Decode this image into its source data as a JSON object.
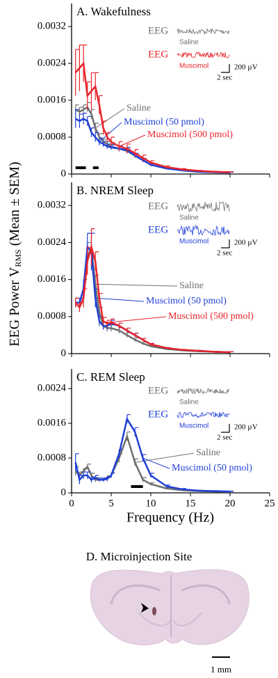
{
  "figure_y_label": {
    "main": "EEG Power V",
    "sub": "RMS",
    "tail": " (Mean ± SEM)"
  },
  "chart_data": [
    {
      "type": "line",
      "title": "A. Wakefulness",
      "x": [
        0.5,
        1,
        1.5,
        2,
        2.5,
        3,
        3.5,
        4,
        4.5,
        5,
        6,
        7,
        8,
        9,
        10,
        12,
        14,
        16,
        18,
        20
      ],
      "xlim": [
        0,
        25
      ],
      "ylim": [
        0,
        0.0037
      ],
      "yticks": [
        0,
        0.0008,
        0.0016,
        0.0024,
        0.0032
      ],
      "series": [
        {
          "name": "Saline",
          "color": "#6e6e6e",
          "values": [
            0.0014,
            0.00135,
            0.0014,
            0.00145,
            0.0013,
            0.001,
            0.0008,
            0.0007,
            0.00065,
            0.0006,
            0.00055,
            0.0005,
            0.0004,
            0.0003,
            0.0002,
            0.00012,
            8e-05,
            5e-05,
            4e-05,
            3e-05
          ],
          "errors": [
            0.0001,
            0.0001,
            0.0001,
            0.0001,
            0.0001,
            0.0001,
            8e-05,
            6e-05,
            5e-05,
            5e-05,
            5e-05,
            5e-05,
            4e-05,
            3e-05,
            2e-05,
            1e-05,
            1e-05,
            1e-05,
            1e-05,
            1e-05
          ]
        },
        {
          "name": "Muscimol (50 pmol)",
          "color": "#1f3fd6",
          "values": [
            0.0012,
            0.00115,
            0.0012,
            0.00115,
            0.0009,
            0.0008,
            0.0007,
            0.00065,
            0.0006,
            0.00058,
            0.00055,
            0.00052,
            0.0004,
            0.0003,
            0.0002,
            0.00012,
            8e-05,
            5e-05,
            4e-05,
            3e-05
          ],
          "errors": [
            0.0002,
            0.00015,
            0.00012,
            0.0001,
            0.0001,
            0.0001,
            8e-05,
            6e-05,
            5e-05,
            5e-05,
            6e-05,
            6e-05,
            5e-05,
            4e-05,
            3e-05,
            2e-05,
            1e-05,
            1e-05,
            1e-05,
            1e-05
          ]
        },
        {
          "name": "Muscimol (500 pmol)",
          "color": "#e8232a",
          "values": [
            0.0022,
            0.0023,
            0.0024,
            0.0017,
            0.0018,
            0.0019,
            0.0015,
            0.001,
            0.0008,
            0.0007,
            0.0006,
            0.00055,
            0.00045,
            0.00035,
            0.00025,
            0.00015,
            0.0001,
            7e-05,
            5e-05,
            4e-05
          ],
          "errors": [
            0.0005,
            0.0005,
            0.0004,
            0.0003,
            0.0004,
            0.0003,
            0.0002,
            0.00015,
            0.0001,
            0.0001,
            0.0001,
            0.0001,
            8e-05,
            6e-05,
            4e-05,
            3e-05,
            2e-05,
            1e-05,
            1e-05,
            1e-05
          ]
        }
      ],
      "sig_bars": [
        [
          0.5,
          1.8
        ],
        [
          2.7,
          3.4
        ]
      ],
      "inset": {
        "traces": [
          {
            "label": "EEG",
            "name": "Saline",
            "color": "#6e6e6e"
          },
          {
            "label": "EEG",
            "name": "Muscimol",
            "color": "#e8232a"
          }
        ],
        "scale_v": "200 µV",
        "scale_t": "2 sec"
      }
    },
    {
      "type": "line",
      "title": "B. NREM Sleep",
      "x": [
        0.5,
        1,
        1.5,
        2,
        2.5,
        3,
        3.5,
        4,
        4.5,
        5,
        6,
        7,
        8,
        9,
        10,
        12,
        14,
        16,
        18,
        20
      ],
      "xlim": [
        0,
        25
      ],
      "ylim": [
        0,
        0.0037
      ],
      "yticks": [
        0,
        0.0008,
        0.0016,
        0.0024,
        0.0032
      ],
      "series": [
        {
          "name": "Saline",
          "color": "#6e6e6e",
          "values": [
            0.0011,
            0.001,
            0.0012,
            0.0021,
            0.0023,
            0.0015,
            0.0009,
            0.0006,
            0.00055,
            0.00055,
            0.0005,
            0.0004,
            0.0003,
            0.00022,
            0.00016,
            0.0001,
            7e-05,
            5e-05,
            4e-05,
            3e-05
          ],
          "errors": [
            0.0001,
            0.0001,
            0.0002,
            0.0003,
            0.0004,
            0.0002,
            0.0001,
            8e-05,
            7e-05,
            7e-05,
            6e-05,
            5e-05,
            4e-05,
            3e-05,
            2e-05,
            1e-05,
            1e-05,
            1e-05,
            1e-05,
            1e-05
          ]
        },
        {
          "name": "Muscimol (50 pmol)",
          "color": "#1f3fd6",
          "values": [
            0.0011,
            0.0011,
            0.0014,
            0.0023,
            0.0022,
            0.0012,
            0.0007,
            0.0006,
            0.0006,
            0.00065,
            0.0006,
            0.0005,
            0.0004,
            0.0003,
            0.0002,
            0.00012,
            8e-05,
            6e-05,
            4e-05,
            3e-05
          ],
          "errors": [
            0.0001,
            0.0001,
            0.0002,
            0.0003,
            0.0004,
            0.0002,
            0.0001,
            8e-05,
            7e-05,
            7e-05,
            6e-05,
            5e-05,
            4e-05,
            3e-05,
            2e-05,
            1e-05,
            1e-05,
            1e-05,
            1e-05,
            1e-05
          ]
        },
        {
          "name": "Muscimol (500 pmol)",
          "color": "#e8232a",
          "values": [
            0.0011,
            0.001,
            0.0012,
            0.002,
            0.0023,
            0.002,
            0.0012,
            0.0007,
            0.00065,
            0.00068,
            0.0006,
            0.0005,
            0.0004,
            0.0003,
            0.0002,
            0.00012,
            8e-05,
            6e-05,
            4e-05,
            3e-05
          ],
          "errors": [
            0.0001,
            0.0001,
            0.0002,
            0.0003,
            0.0004,
            0.0002,
            0.0001,
            8e-05,
            7e-05,
            7e-05,
            6e-05,
            5e-05,
            4e-05,
            3e-05,
            2e-05,
            1e-05,
            1e-05,
            1e-05,
            1e-05,
            1e-05
          ]
        }
      ],
      "inset": {
        "traces": [
          {
            "label": "EEG",
            "name": "Saline",
            "color": "#6e6e6e"
          },
          {
            "label": "EEG",
            "name": "Muscimol",
            "color": "#1f3fd6"
          }
        ],
        "scale_v": "200 µV",
        "scale_t": "2 sec"
      }
    },
    {
      "type": "line",
      "title": "C. REM Sleep",
      "xlabel": "Frequency (Hz)",
      "x": [
        0.5,
        1,
        1.5,
        2,
        2.5,
        3,
        3.5,
        4,
        4.5,
        5,
        6,
        7,
        8,
        9,
        10,
        12,
        14,
        16,
        18,
        20
      ],
      "xlim": [
        0,
        25
      ],
      "xticks": [
        0,
        5,
        10,
        15,
        20,
        25
      ],
      "ylim": [
        0,
        0.00285
      ],
      "yticks": [
        0,
        0.0008,
        0.0016,
        0.0024
      ],
      "series": [
        {
          "name": "Saline",
          "color": "#6e6e6e",
          "values": [
            0.0005,
            0.0004,
            0.0005,
            0.0006,
            0.0004,
            0.0003,
            0.0003,
            0.0003,
            0.00035,
            0.0004,
            0.0008,
            0.0013,
            0.0007,
            0.0003,
            0.0002,
            0.0001,
            6e-05,
            4e-05,
            3e-05,
            2e-05
          ],
          "errors": [
            0.0001,
            8e-05,
            6e-05,
            6e-05,
            5e-05,
            5e-05,
            4e-05,
            4e-05,
            4e-05,
            5e-05,
            0.0001,
            0.0001,
            8e-05,
            5e-05,
            3e-05,
            2e-05,
            1e-05,
            1e-05,
            1e-05,
            1e-05
          ]
        },
        {
          "name": "Muscimol (50 pmol)",
          "color": "#1f3fd6",
          "values": [
            0.0007,
            0.0003,
            0.0004,
            0.0004,
            0.0003,
            0.00035,
            0.0003,
            0.0003,
            0.00032,
            0.0004,
            0.0009,
            0.0017,
            0.0014,
            0.0008,
            0.0004,
            0.00015,
            8e-05,
            5e-05,
            4e-05,
            3e-05
          ],
          "errors": [
            0.0002,
            0.0001,
            8e-05,
            8e-05,
            6e-05,
            5e-05,
            4e-05,
            4e-05,
            5e-05,
            6e-05,
            0.0001,
            0.0001,
            0.0001,
            8e-05,
            5e-05,
            3e-05,
            2e-05,
            1e-05,
            1e-05,
            1e-05
          ]
        }
      ],
      "sig_bars": [
        [
          7.5,
          9
        ]
      ],
      "inset": {
        "traces": [
          {
            "label": "EEG",
            "name": "Saline",
            "color": "#6e6e6e"
          },
          {
            "label": "EEG",
            "name": "Muscimol",
            "color": "#1f3fd6"
          }
        ],
        "scale_v": "200 µV",
        "scale_t": "2 sec"
      }
    }
  ],
  "panel_d": {
    "title": "D. Microinjection Site",
    "scale": "1 mm"
  }
}
